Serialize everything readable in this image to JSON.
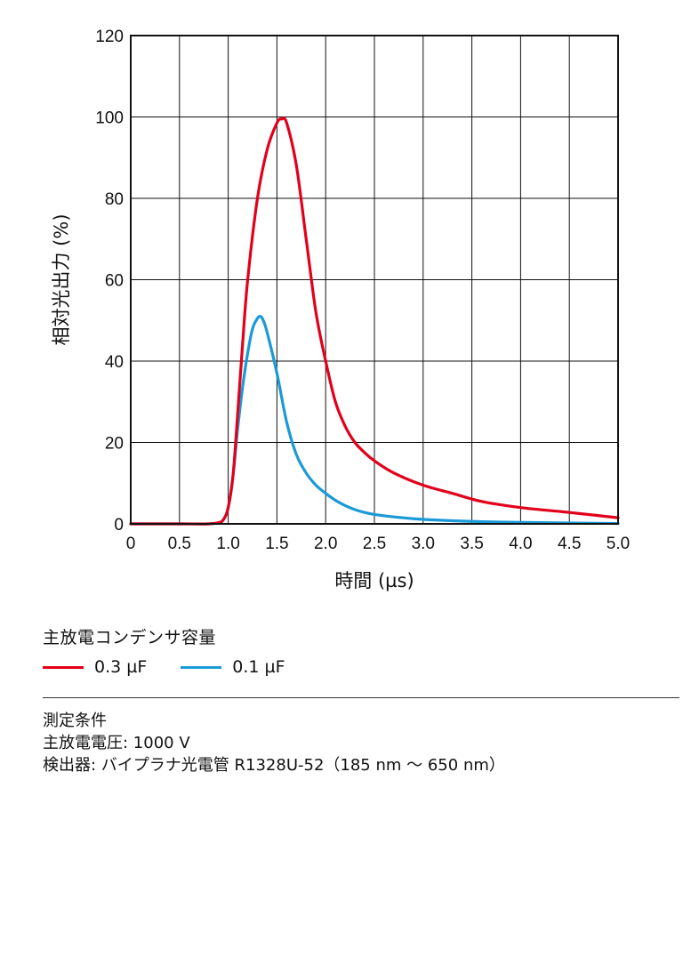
{
  "chart_data": {
    "type": "line",
    "xlabel": "時間 (µs)",
    "ylabel": "相対光出力 (%)",
    "xlim": [
      0,
      5.0
    ],
    "ylim": [
      0,
      120
    ],
    "xticks": [
      "0",
      "0.5",
      "1.0",
      "1.5",
      "2.0",
      "2.5",
      "3.0",
      "3.5",
      "4.0",
      "4.5",
      "5.0"
    ],
    "yticks": [
      "0",
      "20",
      "40",
      "60",
      "80",
      "100",
      "120"
    ],
    "grid": true,
    "series": [
      {
        "name": "0.3 µF",
        "color": "#e2001a",
        "x": [
          0,
          0.5,
          0.8,
          0.9,
          0.95,
          1.0,
          1.05,
          1.1,
          1.15,
          1.2,
          1.3,
          1.4,
          1.5,
          1.55,
          1.6,
          1.7,
          1.8,
          1.9,
          2.0,
          2.1,
          2.2,
          2.3,
          2.4,
          2.5,
          2.7,
          3.0,
          3.3,
          3.6,
          4.0,
          4.5,
          5.0
        ],
        "y": [
          0,
          0,
          0,
          0.3,
          1,
          4,
          12,
          28,
          45,
          60,
          80,
          92,
          98.5,
          99.5,
          98.5,
          88,
          70,
          52,
          40,
          30,
          24,
          20,
          17.5,
          15.5,
          12.5,
          9.5,
          7.5,
          5.5,
          4,
          2.8,
          1.5
        ]
      },
      {
        "name": "0.1 µF",
        "color": "#1a9ad6",
        "x": [
          0,
          0.5,
          0.8,
          0.9,
          0.95,
          1.0,
          1.05,
          1.1,
          1.15,
          1.2,
          1.25,
          1.3,
          1.33,
          1.36,
          1.4,
          1.5,
          1.6,
          1.7,
          1.8,
          1.9,
          2.0,
          2.1,
          2.2,
          2.3,
          2.4,
          2.5,
          2.7,
          3.0,
          3.5,
          4.0,
          5.0
        ],
        "y": [
          0,
          0,
          0,
          0.3,
          1,
          4,
          12,
          24,
          34,
          42,
          48,
          50.5,
          51,
          50,
          47,
          37,
          25,
          17,
          12.5,
          9.5,
          7.5,
          5.8,
          4.5,
          3.5,
          2.8,
          2.3,
          1.7,
          1.1,
          0.6,
          0.35,
          0.1
        ]
      }
    ]
  },
  "legend": {
    "title": "主放電コンデンサ容量",
    "items": [
      "0.3 µF",
      "0.1 µF"
    ]
  },
  "conditions": {
    "heading": "測定条件",
    "lines": [
      "主放電電圧: 1000 V",
      "検出器: バイプラナ光電管 R1328U-52（185 nm ～ 650 nm）"
    ]
  }
}
